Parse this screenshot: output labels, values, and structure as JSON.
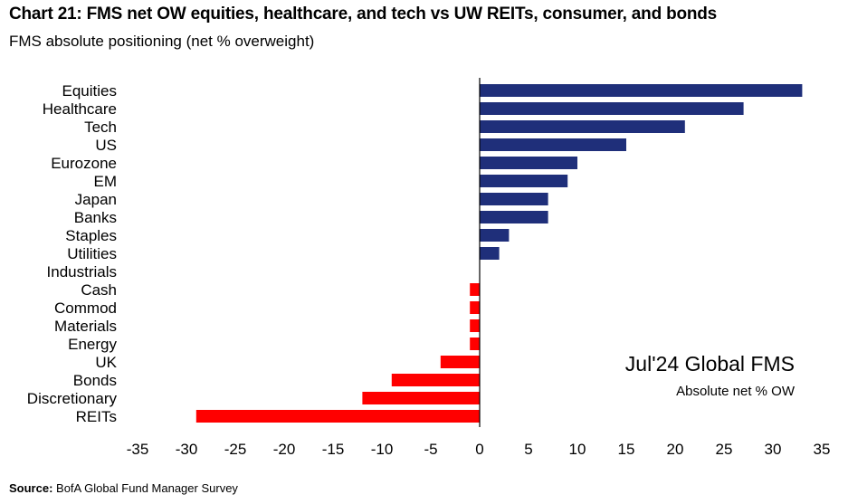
{
  "header": {
    "title": "Chart 21: FMS net OW equities, healthcare, and tech vs UW REITs, consumer, and bonds",
    "subtitle": "FMS absolute positioning (net % overweight)"
  },
  "annotation": {
    "main": "Jul'24 Global FMS",
    "sub": "Absolute net % OW"
  },
  "footer": {
    "source_label": "Source:",
    "source_text": "BofA Global Fund Manager Survey"
  },
  "colors": {
    "positive": "#1f2f7a",
    "negative": "#ff0000",
    "axis": "#000000"
  },
  "chart_data": {
    "type": "bar",
    "orientation": "horizontal",
    "categories": [
      "Equities",
      "Healthcare",
      "Tech",
      "US",
      "Eurozone",
      "EM",
      "Japan",
      "Banks",
      "Staples",
      "Utilities",
      "Industrials",
      "Cash",
      "Commod",
      "Materials",
      "Energy",
      "UK",
      "Bonds",
      "Discretionary",
      "REITs"
    ],
    "values": [
      33,
      27,
      21,
      15,
      10,
      9,
      7,
      7,
      3,
      2,
      0,
      -1,
      -1,
      -1,
      -1,
      -4,
      -9,
      -12,
      -29
    ],
    "xlim": [
      -35,
      35
    ],
    "xticks": [
      -35,
      -30,
      -25,
      -20,
      -15,
      -10,
      -5,
      0,
      5,
      10,
      15,
      20,
      25,
      30,
      35
    ],
    "grid": false,
    "title": "Chart 21: FMS net OW equities, healthcare, and tech vs UW REITs, consumer, and bonds",
    "subtitle": "FMS absolute positioning (net % overweight)"
  }
}
